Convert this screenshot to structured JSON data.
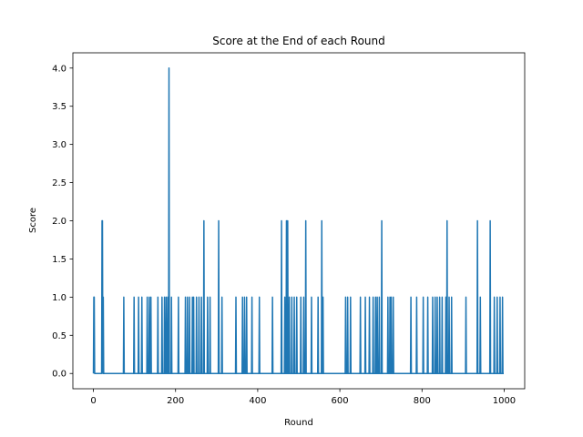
{
  "chart_data": {
    "type": "line",
    "title": "Score at the End of each Round",
    "xlabel": "Round",
    "ylabel": "Score",
    "xlim": [
      -50,
      1050
    ],
    "ylim": [
      -0.2,
      4.2
    ],
    "x_ticks": [
      0,
      200,
      400,
      600,
      800,
      1000
    ],
    "y_ticks": [
      0.0,
      0.5,
      1.0,
      1.5,
      2.0,
      2.5,
      3.0,
      3.5,
      4.0
    ],
    "x_tick_labels": [
      "0",
      "200",
      "400",
      "600",
      "800",
      "1000"
    ],
    "y_tick_labels": [
      "0.0",
      "0.5",
      "1.0",
      "1.5",
      "2.0",
      "2.5",
      "3.0",
      "3.5",
      "4.0"
    ],
    "grid": false,
    "line_color": "#1f77b4",
    "x_max": 999,
    "events": [
      [
        1,
        1
      ],
      [
        2,
        1
      ],
      [
        21,
        2
      ],
      [
        22,
        2
      ],
      [
        24,
        1
      ],
      [
        74,
        1
      ],
      [
        99,
        1
      ],
      [
        110,
        1
      ],
      [
        118,
        1
      ],
      [
        131,
        1
      ],
      [
        136,
        1
      ],
      [
        140,
        1
      ],
      [
        157,
        1
      ],
      [
        167,
        1
      ],
      [
        173,
        1
      ],
      [
        177,
        1
      ],
      [
        181,
        1
      ],
      [
        184,
        4
      ],
      [
        190,
        1
      ],
      [
        207,
        1
      ],
      [
        224,
        1
      ],
      [
        229,
        1
      ],
      [
        234,
        1
      ],
      [
        241,
        1
      ],
      [
        244,
        1
      ],
      [
        251,
        1
      ],
      [
        257,
        1
      ],
      [
        263,
        1
      ],
      [
        269,
        2
      ],
      [
        278,
        1
      ],
      [
        284,
        1
      ],
      [
        305,
        2
      ],
      [
        313,
        1
      ],
      [
        347,
        1
      ],
      [
        363,
        1
      ],
      [
        368,
        1
      ],
      [
        373,
        1
      ],
      [
        386,
        1
      ],
      [
        404,
        1
      ],
      [
        436,
        1
      ],
      [
        458,
        2
      ],
      [
        466,
        1
      ],
      [
        470,
        2
      ],
      [
        473,
        2
      ],
      [
        477,
        1
      ],
      [
        483,
        1
      ],
      [
        489,
        1
      ],
      [
        495,
        1
      ],
      [
        505,
        1
      ],
      [
        512,
        1
      ],
      [
        517,
        2
      ],
      [
        531,
        1
      ],
      [
        547,
        1
      ],
      [
        556,
        2
      ],
      [
        559,
        1
      ],
      [
        614,
        1
      ],
      [
        619,
        1
      ],
      [
        626,
        1
      ],
      [
        650,
        1
      ],
      [
        662,
        1
      ],
      [
        672,
        1
      ],
      [
        681,
        1
      ],
      [
        687,
        1
      ],
      [
        691,
        1
      ],
      [
        696,
        1
      ],
      [
        702,
        2
      ],
      [
        717,
        1
      ],
      [
        722,
        1
      ],
      [
        725,
        1
      ],
      [
        730,
        1
      ],
      [
        773,
        1
      ],
      [
        787,
        1
      ],
      [
        803,
        1
      ],
      [
        814,
        1
      ],
      [
        826,
        1
      ],
      [
        832,
        1
      ],
      [
        837,
        1
      ],
      [
        843,
        1
      ],
      [
        849,
        1
      ],
      [
        858,
        1
      ],
      [
        861,
        2
      ],
      [
        866,
        1
      ],
      [
        872,
        1
      ],
      [
        907,
        1
      ],
      [
        935,
        2
      ],
      [
        942,
        1
      ],
      [
        966,
        2
      ],
      [
        976,
        1
      ],
      [
        983,
        1
      ],
      [
        990,
        1
      ],
      [
        996,
        1
      ]
    ]
  }
}
